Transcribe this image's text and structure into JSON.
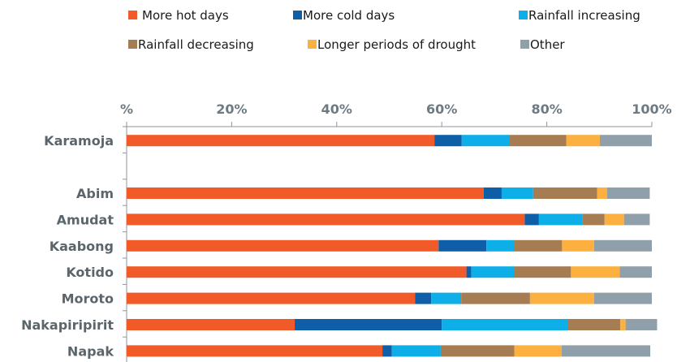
{
  "chart_data": {
    "type": "bar",
    "orientation": "horizontal",
    "stacked": true,
    "title": "",
    "xlabel": "",
    "ylabel": "",
    "xlim": [
      0,
      100
    ],
    "x_ticks": [
      "%",
      "20%",
      "40%",
      "60%",
      "80%",
      "100%"
    ],
    "x_axis_position": "top",
    "legend_position": "top",
    "grid": false,
    "categories": [
      "Karamoja",
      "",
      "Abim",
      "Amudat",
      "Kaabong",
      "Kotido",
      "Moroto",
      "Nakapiripirit",
      "Napak"
    ],
    "series": [
      {
        "name": "More hot days",
        "color": "#f15a29",
        "values": [
          58.6,
          null,
          68.0,
          75.8,
          59.4,
          64.7,
          54.9,
          32.0,
          48.7
        ]
      },
      {
        "name": "More cold days",
        "color": "#0f5ea8",
        "values": [
          5.2,
          null,
          3.4,
          2.7,
          9.1,
          0.9,
          3.1,
          28.0,
          1.8
        ]
      },
      {
        "name": "Rainfall increasing",
        "color": "#0eaee8",
        "values": [
          9.0,
          null,
          6.0,
          8.3,
          5.3,
          8.2,
          5.7,
          24.0,
          9.3
        ]
      },
      {
        "name": "Rainfall decreasing",
        "color": "#a67c52",
        "values": [
          10.9,
          null,
          12.2,
          4.2,
          9.1,
          10.8,
          13.1,
          10.0,
          14.0
        ]
      },
      {
        "name": "Longer periods of drought",
        "color": "#fbb040",
        "values": [
          6.4,
          null,
          1.9,
          3.7,
          6.1,
          9.3,
          12.2,
          1.0,
          9.0
        ]
      },
      {
        "name": "Other",
        "color": "#8fa0aa",
        "values": [
          9.9,
          null,
          8.1,
          4.9,
          11.0,
          6.1,
          11.0,
          6.0,
          16.9
        ]
      }
    ]
  }
}
